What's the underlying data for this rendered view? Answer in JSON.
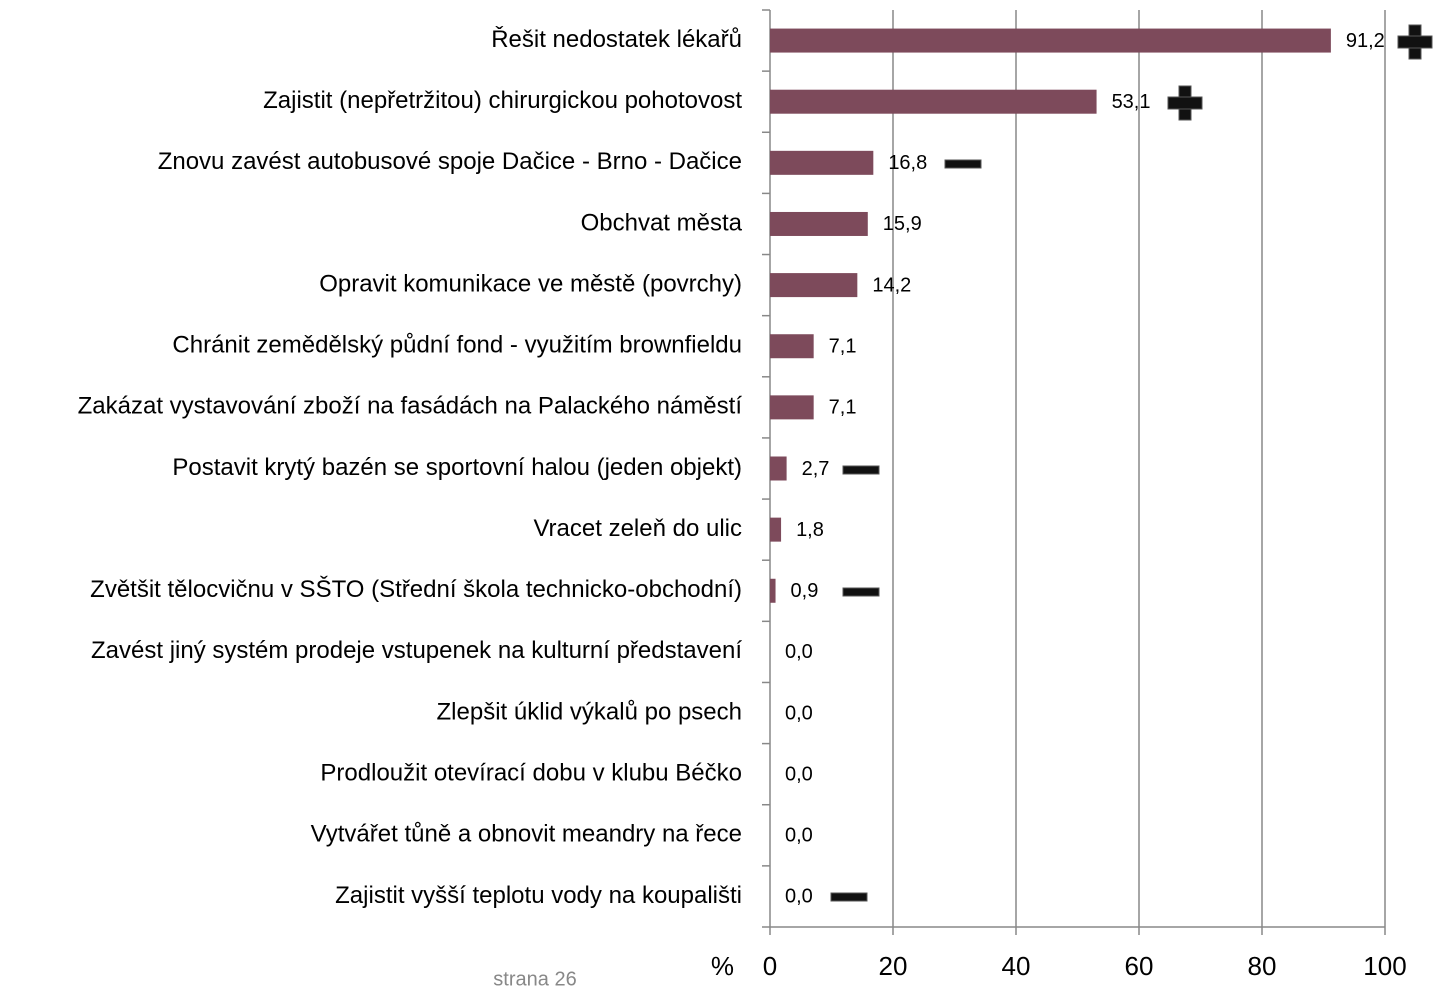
{
  "chart_data": {
    "type": "barh",
    "categories": [
      "Řešit nedostatek lékařů",
      "Zajistit (nepřetržitou) chirurgickou pohotovost",
      "Znovu zavést autobusové spoje Dačice - Brno - Dačice",
      "Obchvat města",
      "Opravit komunikace ve městě (povrchy)",
      "Chránit zemědělský půdní fond - využitím brownfieldu",
      "Zakázat vystavování zboží na fasádách na Palackého náměstí",
      "Postavit krytý bazén se sportovní halou (jeden objekt)",
      "Vracet zeleň do ulic",
      "Zvětšit tělocvičnu v SŠTO (Střední škola technicko-obchodní)",
      "Zavést jiný systém prodeje vstupenek na kulturní představení",
      "Zlepšit úklid výkalů po psech",
      "Prodloužit otevírací dobu v klubu Béčko",
      "Vytvářet tůně a obnovit meandry na řece",
      "Zajistit vyšší teplotu vody na koupališti"
    ],
    "values": [
      91.2,
      53.1,
      16.8,
      15.9,
      14.2,
      7.1,
      7.1,
      2.7,
      1.8,
      0.9,
      0,
      0,
      0,
      0,
      0
    ],
    "value_labels": [
      "91,2",
      "53,1",
      "16,8",
      "15,9",
      "14,2",
      "7,1",
      "7,1",
      "2,7",
      "1,8",
      "0,9",
      "0,0",
      "0,0",
      "0,0",
      "0,0",
      "0,0"
    ],
    "color": "#7d4a5b",
    "xlabel": "%",
    "xlim": [
      0,
      100
    ],
    "xticks": [
      0,
      20,
      40,
      60,
      80,
      100
    ],
    "grid": true,
    "footer": "strana 26"
  }
}
